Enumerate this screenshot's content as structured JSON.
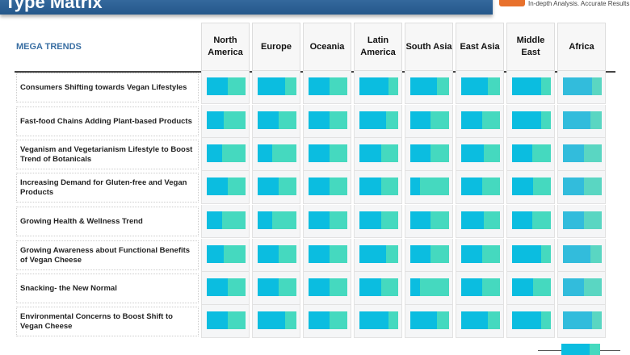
{
  "header": {
    "title": "Type Matrix",
    "tagline": "In-depth Analysis. Accurate Results",
    "megatrends_label": "MEGA TRENDS"
  },
  "colors": {
    "title_bar": "#2e5f8f",
    "share_primary": "#0bbde0",
    "share_secondary": "#45d9bf",
    "logo": "#e8712c"
  },
  "chart_data": {
    "type": "table",
    "columns": [
      "North America",
      "Europe",
      "Oceania",
      "Latin America",
      "South Asia",
      "East Asia",
      "Middle East",
      "Africa"
    ],
    "rows": [
      {
        "label": "Consumers Shifting towards Vegan Lifestyles",
        "values": [
          0.55,
          0.7,
          0.55,
          0.74,
          0.69,
          0.68,
          0.74,
          0.75
        ]
      },
      {
        "label": "Fast-food Chains Adding Plant-based Products",
        "values": [
          0.43,
          0.55,
          0.55,
          0.69,
          0.53,
          0.54,
          0.74,
          0.7
        ]
      },
      {
        "label": "Veganism and Vegetarianism Lifestyle to Boost Trend of Botanicals",
        "values": [
          0.4,
          0.38,
          0.55,
          0.56,
          0.53,
          0.59,
          0.53,
          0.54
        ]
      },
      {
        "label": "Increasing Demand for Gluten-free and Vegan Products",
        "values": [
          0.55,
          0.55,
          0.55,
          0.56,
          0.26,
          0.54,
          0.55,
          0.54
        ]
      },
      {
        "label": "Growing Health & Wellness Trend",
        "values": [
          0.4,
          0.38,
          0.55,
          0.56,
          0.53,
          0.59,
          0.53,
          0.54
        ]
      },
      {
        "label": "Growing Awareness about Functional Benefits of Vegan Cheese",
        "values": [
          0.43,
          0.55,
          0.55,
          0.69,
          0.53,
          0.54,
          0.74,
          0.7
        ]
      },
      {
        "label": "Snacking- the New Normal",
        "values": [
          0.55,
          0.55,
          0.55,
          0.56,
          0.26,
          0.54,
          0.55,
          0.54
        ]
      },
      {
        "label": "Environmental Concerns to Boost Shift to Vegan Cheese",
        "values": [
          0.55,
          0.7,
          0.55,
          0.74,
          0.69,
          0.68,
          0.74,
          0.75
        ]
      }
    ]
  }
}
